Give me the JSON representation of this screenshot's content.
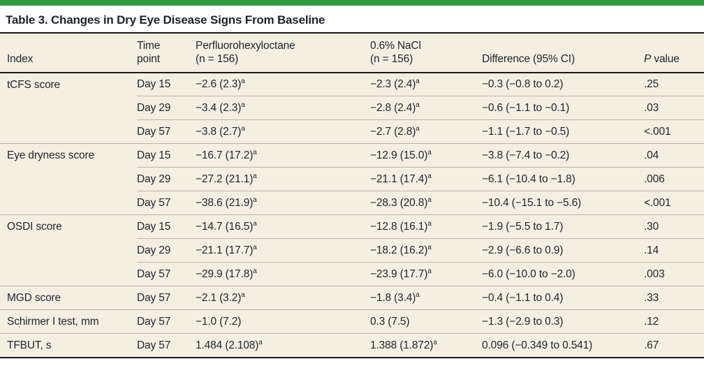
{
  "page": {
    "title": "Table 3. Changes in Dry Eye Disease Signs From Baseline"
  },
  "colors": {
    "accent_bar_green": "#2E9C3E",
    "table_background": "#F3F0E2",
    "rule_dark": "#1A1A1A",
    "row_separator": "#B7B5AA"
  },
  "table": {
    "headers": {
      "index": "Index",
      "time_line1": "Time",
      "time_line2": "point",
      "pfho_line1": "Perfluorohexyloctane",
      "pfho_line2": "(n = 156)",
      "nacl_line1": "0.6% NaCl",
      "nacl_line2": "(n = 156)",
      "diff": "Difference (95% CI)",
      "p_italic": "P",
      "p_rest": " value"
    },
    "rows": [
      {
        "index": "tCFS score",
        "time": "Day 15",
        "pfho": "−2.6 (2.3)",
        "pfho_sup": "a",
        "nacl": "−2.3 (2.4)",
        "nacl_sup": "a",
        "diff": "−0.3 (−0.8 to 0.2)",
        "p": ".25"
      },
      {
        "index": "",
        "time": "Day 29",
        "pfho": "−3.4 (2.3)",
        "pfho_sup": "a",
        "nacl": "−2.8 (2.4)",
        "nacl_sup": "a",
        "diff": "−0.6 (−1.1 to −0.1)",
        "p": ".03"
      },
      {
        "index": "",
        "time": "Day 57",
        "pfho": "−3.8 (2.7)",
        "pfho_sup": "a",
        "nacl": "−2.7 (2.8)",
        "nacl_sup": "a",
        "diff": "−1.1 (−1.7 to −0.5)",
        "p": "<.001"
      },
      {
        "index": "Eye dryness score",
        "time": "Day 15",
        "pfho": "−16.7 (17.2)",
        "pfho_sup": "a",
        "nacl": "−12.9 (15.0)",
        "nacl_sup": "a",
        "diff": "−3.8 (−7.4 to −0.2)",
        "p": ".04"
      },
      {
        "index": "",
        "time": "Day 29",
        "pfho": "−27.2 (21.1)",
        "pfho_sup": "a",
        "nacl": "−21.1 (17.4)",
        "nacl_sup": "a",
        "diff": "−6.1 (−10.4 to −1.8)",
        "p": ".006"
      },
      {
        "index": "",
        "time": "Day 57",
        "pfho": "−38.6 (21.9)",
        "pfho_sup": "a",
        "nacl": "−28.3 (20.8)",
        "nacl_sup": "a",
        "diff": "−10.4 (−15.1 to −5.6)",
        "p": "<.001"
      },
      {
        "index": "OSDI score",
        "time": "Day 15",
        "pfho": "−14.7 (16.5)",
        "pfho_sup": "a",
        "nacl": "−12.8 (16.1)",
        "nacl_sup": "a",
        "diff": "−1.9 (−5.5 to 1.7)",
        "p": ".30"
      },
      {
        "index": "",
        "time": "Day 29",
        "pfho": "−21.1 (17.7)",
        "pfho_sup": "a",
        "nacl": "−18.2 (16.2)",
        "nacl_sup": "a",
        "diff": "−2.9 (−6.6 to 0.9)",
        "p": ".14"
      },
      {
        "index": "",
        "time": "Day 57",
        "pfho": "−29.9 (17.8)",
        "pfho_sup": "a",
        "nacl": "−23.9 (17.7)",
        "nacl_sup": "a",
        "diff": "−6.0 (−10.0 to −2.0)",
        "p": ".003"
      },
      {
        "index": "MGD score",
        "time": "Day 57",
        "pfho": "−2.1 (3.2)",
        "pfho_sup": "a",
        "nacl": "−1.8 (3.4)",
        "nacl_sup": "a",
        "diff": "−0.4 (−1.1 to 0.4)",
        "p": ".33"
      },
      {
        "index": "Schirmer I test, mm",
        "time": "Day 57",
        "pfho": "−1.0 (7.2)",
        "pfho_sup": "",
        "nacl": "0.3 (7.5)",
        "nacl_sup": "",
        "diff": "−1.3 (−2.9 to 0.3)",
        "p": ".12"
      },
      {
        "index": "TFBUT, s",
        "time": "Day 57",
        "pfho": "1.484 (2.108)",
        "pfho_sup": "a",
        "nacl": "1.388 (1.872)",
        "nacl_sup": "a",
        "diff": "0.096 (−0.349 to 0.541)",
        "p": ".67"
      }
    ]
  }
}
